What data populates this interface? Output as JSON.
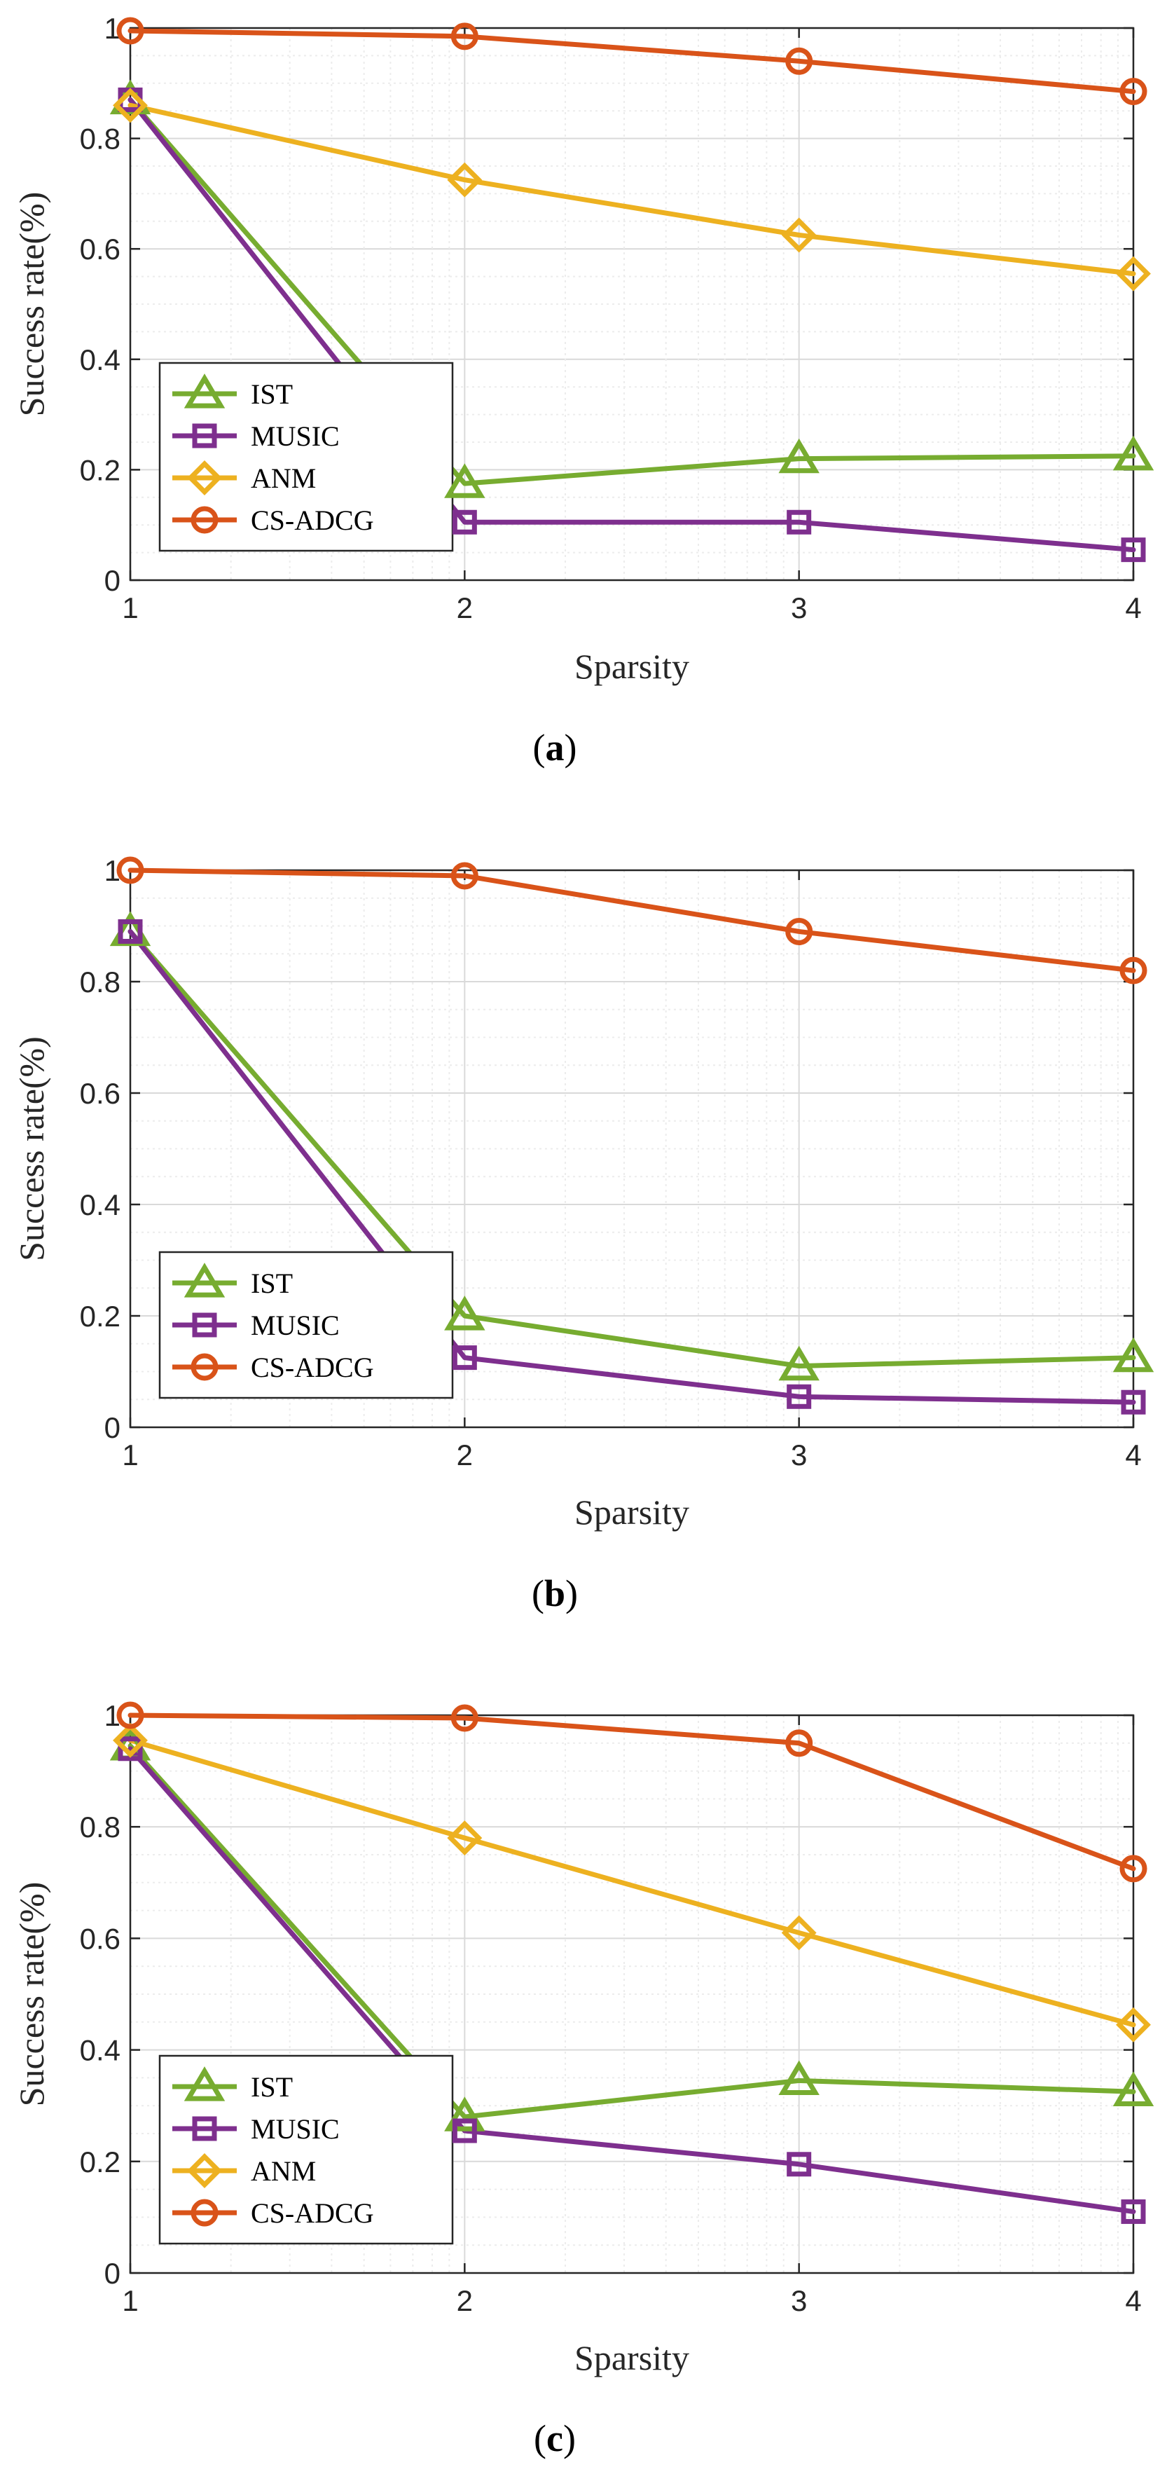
{
  "chart_data": [
    {
      "type": "line",
      "caption": "(a)",
      "caption_letter": "a",
      "xlabel": "Sparsity",
      "ylabel": "Success rate(%)",
      "x": [
        1,
        2,
        3,
        4
      ],
      "xlim": [
        1,
        4
      ],
      "ylim": [
        0,
        1
      ],
      "xticks": [
        "1",
        "2",
        "3",
        "4"
      ],
      "yticks": [
        "0",
        "0.2",
        "0.4",
        "0.6",
        "0.8",
        "1"
      ],
      "grid": true,
      "legend_position": "lower-left",
      "series": [
        {
          "name": "IST",
          "values": [
            0.87,
            0.175,
            0.22,
            0.225
          ],
          "color": "#77AC30",
          "marker": "triangle"
        },
        {
          "name": "MUSIC",
          "values": [
            0.87,
            0.105,
            0.105,
            0.055
          ],
          "color": "#7E2F8E",
          "marker": "square"
        },
        {
          "name": "ANM",
          "values": [
            0.86,
            0.725,
            0.625,
            0.555
          ],
          "color": "#EDB120",
          "marker": "diamond"
        },
        {
          "name": "CS-ADCG",
          "values": [
            0.995,
            0.985,
            0.94,
            0.885
          ],
          "color": "#D95319",
          "marker": "circle"
        }
      ]
    },
    {
      "type": "line",
      "caption": "(b)",
      "caption_letter": "b",
      "xlabel": "Sparsity",
      "ylabel": "Success rate(%)",
      "x": [
        1,
        2,
        3,
        4
      ],
      "xlim": [
        1,
        4
      ],
      "ylim": [
        0,
        1
      ],
      "xticks": [
        "1",
        "2",
        "3",
        "4"
      ],
      "yticks": [
        "0",
        "0.2",
        "0.4",
        "0.6",
        "0.8",
        "1"
      ],
      "grid": true,
      "legend_position": "lower-left",
      "series": [
        {
          "name": "IST",
          "values": [
            0.89,
            0.2,
            0.11,
            0.125
          ],
          "color": "#77AC30",
          "marker": "triangle"
        },
        {
          "name": "MUSIC",
          "values": [
            0.89,
            0.125,
            0.055,
            0.045
          ],
          "color": "#7E2F8E",
          "marker": "square"
        },
        {
          "name": "CS-ADCG",
          "values": [
            1.0,
            0.99,
            0.89,
            0.82
          ],
          "color": "#D95319",
          "marker": "circle"
        }
      ]
    },
    {
      "type": "line",
      "caption": "(c)",
      "caption_letter": "c",
      "xlabel": "Sparsity",
      "ylabel": "Success rate(%)",
      "x": [
        1,
        2,
        3,
        4
      ],
      "xlim": [
        1,
        4
      ],
      "ylim": [
        0,
        1
      ],
      "xticks": [
        "1",
        "2",
        "3",
        "4"
      ],
      "yticks": [
        "0",
        "0.2",
        "0.4",
        "0.6",
        "0.8",
        "1"
      ],
      "grid": true,
      "legend_position": "lower-left",
      "series": [
        {
          "name": "IST",
          "values": [
            0.945,
            0.28,
            0.345,
            0.325
          ],
          "color": "#77AC30",
          "marker": "triangle"
        },
        {
          "name": "MUSIC",
          "values": [
            0.94,
            0.255,
            0.195,
            0.11
          ],
          "color": "#7E2F8E",
          "marker": "square"
        },
        {
          "name": "ANM",
          "values": [
            0.955,
            0.78,
            0.61,
            0.445
          ],
          "color": "#EDB120",
          "marker": "diamond"
        },
        {
          "name": "CS-ADCG",
          "values": [
            1.0,
            0.995,
            0.95,
            0.725
          ],
          "color": "#D95319",
          "marker": "circle"
        }
      ]
    }
  ]
}
